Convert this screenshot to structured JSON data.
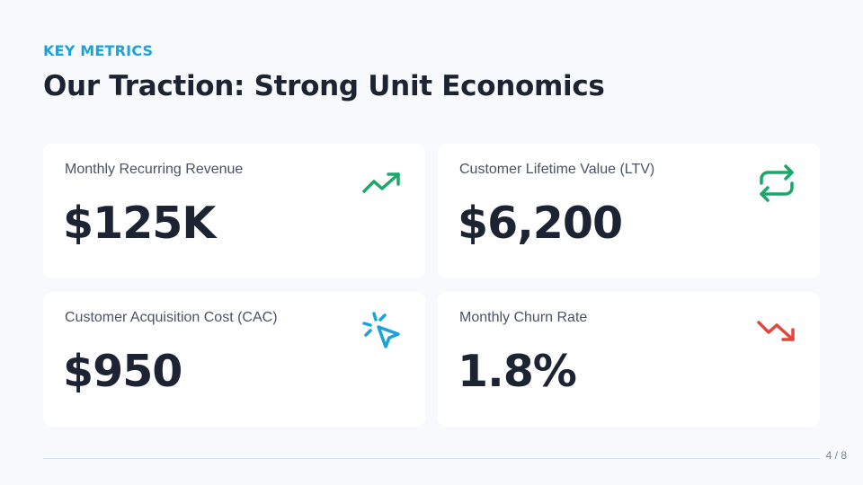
{
  "header": {
    "eyebrow": "KEY METRICS",
    "title": "Our Traction: Strong Unit Economics"
  },
  "metrics": [
    {
      "label": "Monthly Recurring Revenue",
      "value": "$125K",
      "icon": "trending-up-icon",
      "icon_color": "#1aa86a"
    },
    {
      "label": "Customer Lifetime Value (LTV)",
      "value": "$6,200",
      "icon": "repeat-icon",
      "icon_color": "#1aa86a"
    },
    {
      "label": "Customer Acquisition Cost (CAC)",
      "value": "$950",
      "icon": "cursor-click-icon",
      "icon_color": "#1aa3d8"
    },
    {
      "label": "Monthly Churn Rate",
      "value": "1.8%",
      "icon": "trending-down-icon",
      "icon_color": "#e5453a"
    }
  ],
  "footer": {
    "page_indicator": "4 / 8"
  },
  "colors": {
    "background": "#f7f9fc",
    "accent": "#1aa3d8",
    "text_dark": "#1c2434",
    "positive": "#1aa86a",
    "negative": "#e5453a"
  }
}
